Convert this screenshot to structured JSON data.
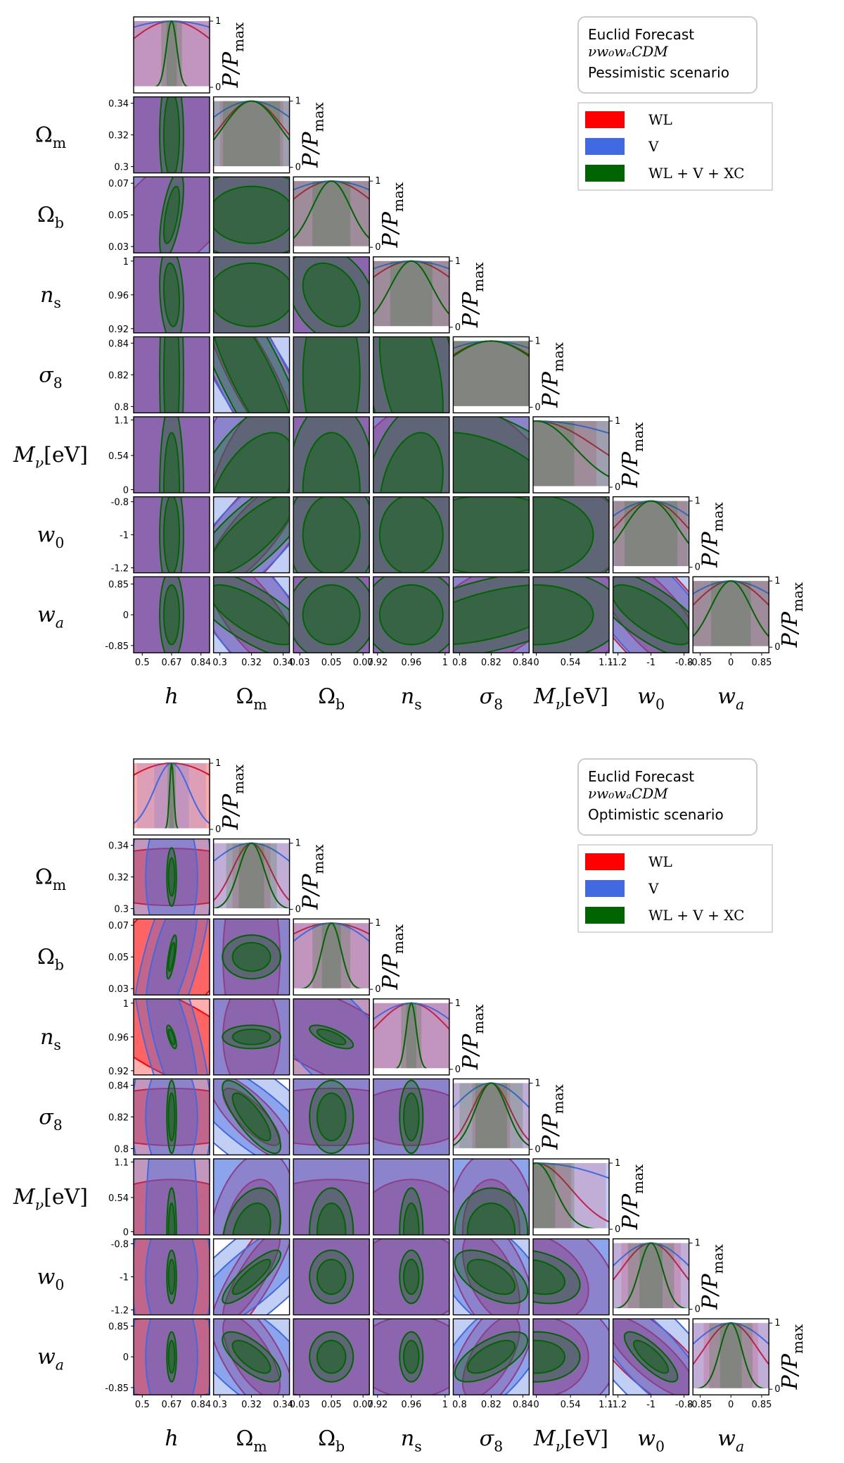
{
  "figure": {
    "description_title": "Euclid Forecast corner plots"
  },
  "parameters": [
    {
      "id": "h",
      "label_main": "h",
      "label_sub": "",
      "fiducial": 0.67,
      "ticks": [
        "0.5",
        "0.67",
        "0.84"
      ],
      "range": [
        0.45,
        0.89
      ],
      "tick_values": [
        0.5,
        0.67,
        0.84
      ]
    },
    {
      "id": "Om",
      "label_main": "Ω",
      "label_sub": "m",
      "fiducial": 0.32,
      "ticks": [
        "0.3",
        "0.32",
        "0.34"
      ],
      "range": [
        0.296,
        0.344
      ],
      "tick_values": [
        0.3,
        0.32,
        0.34
      ]
    },
    {
      "id": "Ob",
      "label_main": "Ω",
      "label_sub": "b",
      "fiducial": 0.05,
      "ticks": [
        "0.03",
        "0.05",
        "0.07"
      ],
      "range": [
        0.026,
        0.074
      ],
      "tick_values": [
        0.03,
        0.05,
        0.07
      ]
    },
    {
      "id": "ns",
      "label_main": "n",
      "label_sub": "s",
      "fiducial": 0.96,
      "ticks": [
        "0.92",
        "0.96",
        "1"
      ],
      "range": [
        0.915,
        1.005
      ],
      "tick_values": [
        0.92,
        0.96,
        1.0
      ]
    },
    {
      "id": "s8",
      "label_main": "σ",
      "label_sub": "8",
      "fiducial": 0.82,
      "ticks": [
        "0.8",
        "0.82",
        "0.84"
      ],
      "range": [
        0.796,
        0.844
      ],
      "tick_values": [
        0.8,
        0.82,
        0.84
      ]
    },
    {
      "id": "Mnu",
      "label_main": "M",
      "label_sub": "ν",
      "label_suffix": "[eV]",
      "fiducial": 0.0,
      "ticks": [
        "0",
        "0.54",
        "1.1"
      ],
      "range": [
        -0.05,
        1.15
      ],
      "tick_values": [
        0.0,
        0.54,
        1.1
      ]
    },
    {
      "id": "w0",
      "label_main": "w",
      "label_sub": "0",
      "fiducial": -1.0,
      "ticks": [
        "-1.2",
        "-1",
        "-0.8"
      ],
      "range": [
        -1.23,
        -0.77
      ],
      "tick_values": [
        -1.2,
        -1.0,
        -0.8
      ]
    },
    {
      "id": "wa",
      "label_main": "w",
      "label_sub": "a",
      "fiducial": 0.0,
      "ticks": [
        "-0.85",
        "0",
        "0.85"
      ],
      "range": [
        -1.05,
        1.05
      ],
      "tick_values": [
        -0.85,
        0.0,
        0.85
      ]
    }
  ],
  "diag_axis": {
    "ylabel": "P/P",
    "ylabel_sub": "max",
    "tick_top": "1",
    "tick_bottom": "0"
  },
  "legend": {
    "entries": [
      {
        "label": "WL",
        "color": "#ff0000"
      },
      {
        "label": "V",
        "color": "#4169e1"
      },
      {
        "label": "WL + V + XC",
        "color": "#006400"
      }
    ]
  },
  "panels": [
    {
      "id": "pessimistic",
      "title_line1": "Euclid Forecast",
      "title_line2": "νw₀wₐCDM",
      "title_line3": "Pessimistic scenario",
      "chart_data": {
        "type": "corner",
        "series": [
          {
            "name": "WL",
            "color": "#ff0000",
            "sigma": [
              0.28,
              0.02,
              0.03,
              0.06,
              0.035,
              0.95,
              0.22,
              1.1
            ]
          },
          {
            "name": "V",
            "color": "#4169e1",
            "sigma": [
              0.5,
              0.032,
              0.045,
              0.09,
              0.05,
              1.8,
              0.32,
              1.6
            ]
          },
          {
            "name": "WL + V + XC",
            "color": "#006400",
            "sigma": [
              0.03,
              0.018,
              0.012,
              0.025,
              0.033,
              0.6,
              0.16,
              0.55
            ]
          }
        ],
        "correlations": {
          "Om-s8": -0.85,
          "Om-w0": 0.8,
          "Om-wa": -0.75,
          "Ob-h": 0.6,
          "s8-wa": 0.6,
          "w0-wa": -0.75,
          "Om-Mnu": 0.5,
          "s8-Mnu": -0.5,
          "ns-Mnu": 0.3,
          "ns-s8": -0.4,
          "Ob-ns": -0.3,
          "h-ns": -0.2
        }
      }
    },
    {
      "id": "optimistic",
      "title_line1": "Euclid Forecast",
      "title_line2": "νw₀wₐCDM",
      "title_line3": "Optimistic scenario",
      "chart_data": {
        "type": "corner",
        "series": [
          {
            "name": "WL",
            "color": "#ff0000",
            "sigma": [
              0.35,
              0.012,
              0.04,
              0.045,
              0.012,
              0.55,
              0.18,
              0.75
            ]
          },
          {
            "name": "V",
            "color": "#4169e1",
            "sigma": [
              0.1,
              0.03,
              0.03,
              0.06,
              0.025,
              1.6,
              0.25,
              1.2
            ]
          },
          {
            "name": "WL + V + XC",
            "color": "#006400",
            "sigma": [
              0.012,
              0.008,
              0.006,
              0.006,
              0.01,
              0.3,
              0.07,
              0.3
            ]
          }
        ],
        "correlations": {
          "h-ns": -0.7,
          "h-Ob": 0.7,
          "Ob-ns": -0.7,
          "Om-s8": -0.8,
          "Om-w0": 0.85,
          "Om-wa": -0.7,
          "s8-wa": 0.65,
          "w0-wa": -0.8,
          "s8-w0": -0.55,
          "Om-Mnu": 0.3,
          "Mnu-w0": -0.3
        }
      }
    }
  ]
}
